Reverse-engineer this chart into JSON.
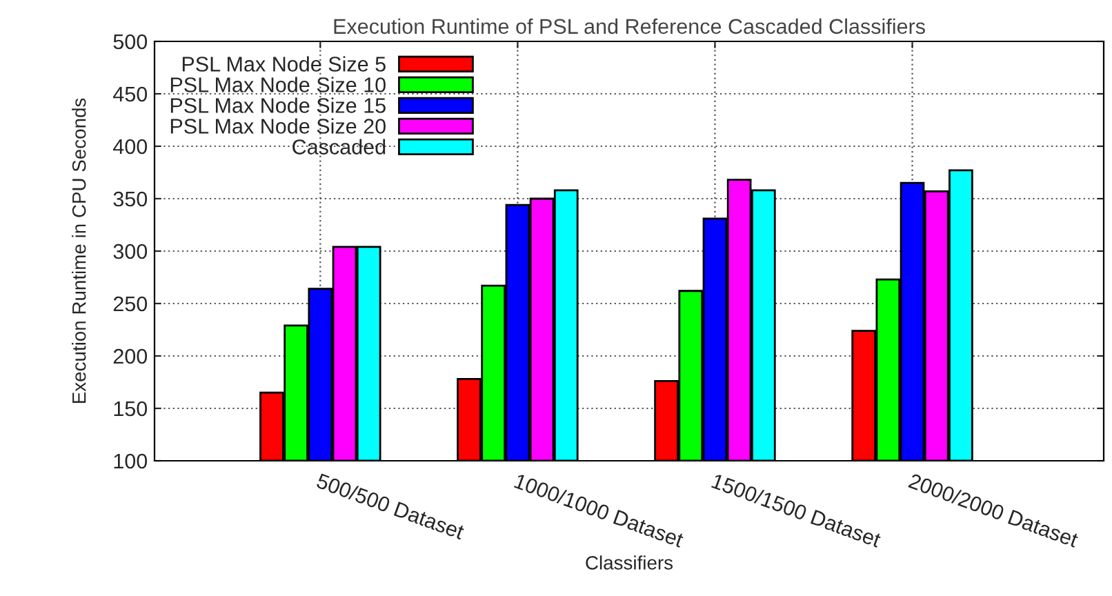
{
  "chart_data": {
    "type": "bar",
    "title": "Execution Runtime of PSL and Reference Cascaded Classifiers",
    "xlabel": "Classifiers",
    "ylabel": "Execution Runtime in CPU Seconds",
    "categories": [
      "500/500 Dataset",
      "1000/1000 Dataset",
      "1500/1500 Dataset",
      "2000/2000 Dataset"
    ],
    "series": [
      {
        "name": "PSL Max Node Size 5",
        "color": "#ff0000",
        "values": [
          165,
          178,
          176,
          224
        ]
      },
      {
        "name": "PSL Max Node Size 10",
        "color": "#00ff00",
        "values": [
          229,
          267,
          262,
          273
        ]
      },
      {
        "name": "PSL Max Node Size 15",
        "color": "#0000ff",
        "values": [
          264,
          344,
          331,
          365
        ]
      },
      {
        "name": "PSL Max Node Size 20",
        "color": "#ff00ff",
        "values": [
          304,
          350,
          368,
          357
        ]
      },
      {
        "name": "Cascaded",
        "color": "#00ffff",
        "values": [
          304,
          358,
          358,
          377
        ]
      }
    ],
    "ylim": [
      100,
      500
    ],
    "yticks": [
      100,
      150,
      200,
      250,
      300,
      350,
      400,
      450,
      500
    ],
    "grid": true,
    "legend": "top left"
  }
}
